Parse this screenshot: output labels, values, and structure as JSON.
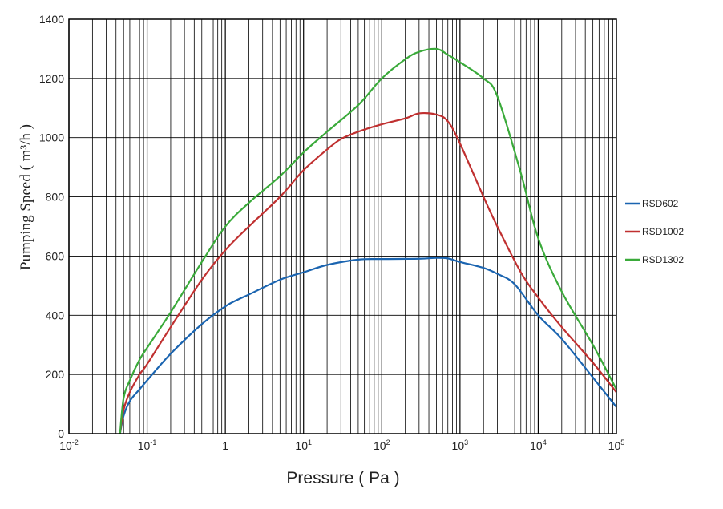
{
  "chart_data": {
    "type": "line",
    "xlabel": "Pressure ( Pa )",
    "ylabel": "Pumping Speed ( m³/h )",
    "xscale": "log",
    "xlim": [
      0.01,
      100000
    ],
    "ylim": [
      0,
      1400
    ],
    "grid": true,
    "legend_position": "right",
    "x_ticks": [
      {
        "value": 0.01,
        "base": "10",
        "exp": "-2"
      },
      {
        "value": 0.1,
        "base": "10",
        "exp": "-1"
      },
      {
        "value": 1,
        "base": "1",
        "exp": ""
      },
      {
        "value": 10,
        "base": "10",
        "exp": "1"
      },
      {
        "value": 100,
        "base": "10",
        "exp": "2"
      },
      {
        "value": 1000,
        "base": "10",
        "exp": "3"
      },
      {
        "value": 10000,
        "base": "10",
        "exp": "4"
      },
      {
        "value": 100000,
        "base": "10",
        "exp": "5"
      }
    ],
    "y_ticks": [
      0,
      200,
      400,
      600,
      800,
      1000,
      1200,
      1400
    ],
    "series": [
      {
        "name": "RSD602",
        "color": "#1a64b0",
        "points": [
          [
            0.045,
            0
          ],
          [
            0.05,
            60
          ],
          [
            0.06,
            110
          ],
          [
            0.08,
            150
          ],
          [
            0.1,
            180
          ],
          [
            0.2,
            270
          ],
          [
            0.5,
            370
          ],
          [
            1,
            430
          ],
          [
            1.5,
            455
          ],
          [
            2,
            470
          ],
          [
            5,
            520
          ],
          [
            10,
            545
          ],
          [
            20,
            570
          ],
          [
            50,
            588
          ],
          [
            100,
            590
          ],
          [
            300,
            591
          ],
          [
            500,
            594
          ],
          [
            700,
            592
          ],
          [
            1000,
            580
          ],
          [
            2000,
            560
          ],
          [
            3000,
            540
          ],
          [
            5000,
            505
          ],
          [
            10000,
            400
          ],
          [
            20000,
            320
          ],
          [
            50000,
            190
          ],
          [
            100000,
            90
          ]
        ]
      },
      {
        "name": "RSD1002",
        "color": "#c03030",
        "points": [
          [
            0.045,
            0
          ],
          [
            0.05,
            80
          ],
          [
            0.06,
            140
          ],
          [
            0.08,
            200
          ],
          [
            0.1,
            235
          ],
          [
            0.2,
            360
          ],
          [
            0.5,
            520
          ],
          [
            1,
            620
          ],
          [
            2,
            700
          ],
          [
            5,
            800
          ],
          [
            10,
            890
          ],
          [
            20,
            960
          ],
          [
            30,
            995
          ],
          [
            50,
            1020
          ],
          [
            100,
            1045
          ],
          [
            200,
            1065
          ],
          [
            300,
            1082
          ],
          [
            500,
            1078
          ],
          [
            700,
            1055
          ],
          [
            1000,
            980
          ],
          [
            2000,
            800
          ],
          [
            3000,
            700
          ],
          [
            6000,
            545
          ],
          [
            10000,
            460
          ],
          [
            20000,
            360
          ],
          [
            50000,
            240
          ],
          [
            100000,
            140
          ]
        ]
      },
      {
        "name": "RSD1302",
        "color": "#3aaa3a",
        "points": [
          [
            0.045,
            0
          ],
          [
            0.05,
            120
          ],
          [
            0.06,
            180
          ],
          [
            0.08,
            250
          ],
          [
            0.1,
            290
          ],
          [
            0.2,
            410
          ],
          [
            0.5,
            580
          ],
          [
            1,
            700
          ],
          [
            2,
            780
          ],
          [
            5,
            870
          ],
          [
            10,
            950
          ],
          [
            20,
            1020
          ],
          [
            50,
            1110
          ],
          [
            100,
            1200
          ],
          [
            200,
            1265
          ],
          [
            300,
            1290
          ],
          [
            500,
            1300
          ],
          [
            700,
            1280
          ],
          [
            1000,
            1255
          ],
          [
            2000,
            1200
          ],
          [
            3000,
            1140
          ],
          [
            6000,
            880
          ],
          [
            10000,
            660
          ],
          [
            20000,
            480
          ],
          [
            50000,
            300
          ],
          [
            100000,
            150
          ]
        ]
      }
    ]
  }
}
